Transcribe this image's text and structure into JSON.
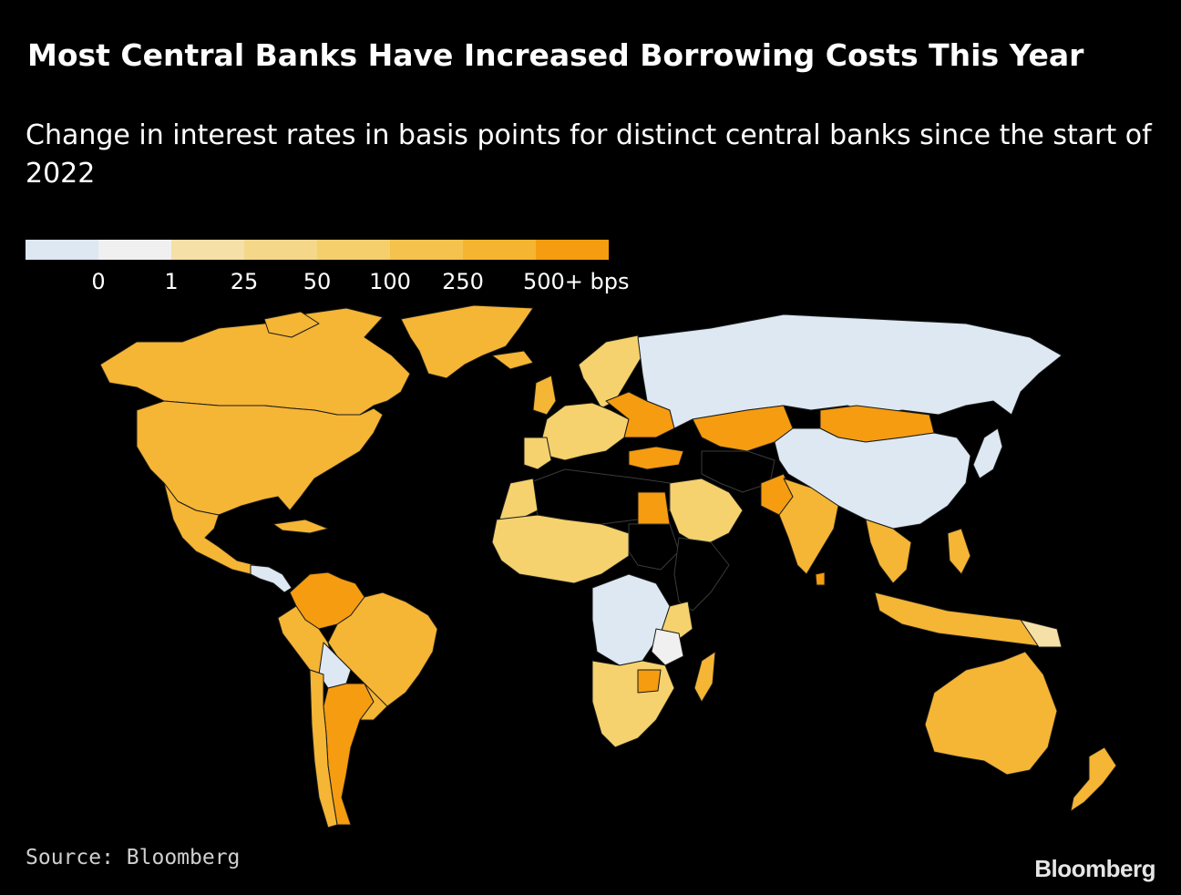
{
  "header": {
    "title": "Most Central Banks Have Increased Borrowing Costs This Year",
    "subtitle": "Change in interest rates in basis points for distinct central banks since the start of 2022"
  },
  "legend": {
    "labels": [
      "0",
      "1",
      "25",
      "50",
      "100",
      "250",
      "500+ bps"
    ],
    "colors": [
      "#dde8f2",
      "#f0f0f0",
      "#f5de9c",
      "#f5d67e",
      "#f5cc5c",
      "#f5b535",
      "#f59c10"
    ]
  },
  "colors": {
    "background": "#000000",
    "no_data": "#000000",
    "border": "#3a3a3a"
  },
  "footer": {
    "source": "Source: Bloomberg",
    "brand": "Bloomberg"
  }
}
